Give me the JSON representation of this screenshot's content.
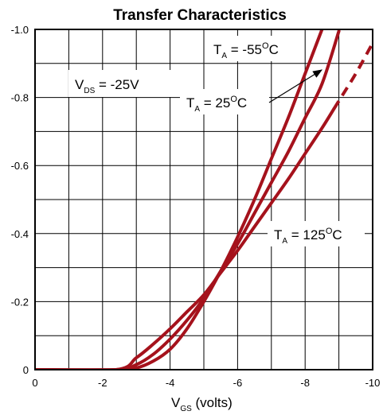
{
  "chart_data": {
    "type": "line",
    "title": "Transfer Characteristics",
    "xlabel": {
      "main": "V",
      "sub": "GS",
      "suffix": " (volts)"
    },
    "ylabel": "",
    "xlim": [
      0,
      -10
    ],
    "ylim": [
      0,
      -1.0
    ],
    "x_ticks": [
      0,
      -2,
      -4,
      -6,
      -8,
      -10
    ],
    "x_tick_labels": [
      "0",
      "-2",
      "-4",
      "-6",
      "-8",
      "-10"
    ],
    "y_ticks": [
      0,
      -0.2,
      -0.4,
      -0.6,
      -0.8,
      -1.0
    ],
    "y_tick_labels": [
      "0",
      "-0.2",
      "-0.4",
      "-0.6",
      "-0.8",
      "-1.0"
    ],
    "grid": true,
    "line_color": "#a5121c",
    "series": [
      {
        "name": "T_A = -55°C",
        "x": [
          0,
          -2.4,
          -3.0,
          -3.5,
          -4.0,
          -4.5,
          -5.0,
          -5.5,
          -6.0,
          -6.5,
          -7.0,
          -7.5,
          -8.0,
          -8.5
        ],
        "y": [
          0,
          0,
          -0.005,
          -0.025,
          -0.06,
          -0.12,
          -0.2,
          -0.29,
          -0.39,
          -0.5,
          -0.62,
          -0.74,
          -0.87,
          -1.0
        ],
        "dashed_from": null
      },
      {
        "name": "T_A = 25°C",
        "x": [
          0,
          -2.4,
          -3.0,
          -3.5,
          -4.0,
          -4.5,
          -5.0,
          -5.5,
          -6.0,
          -6.5,
          -7.0,
          -7.5,
          -8.0,
          -8.5,
          -9.0
        ],
        "y": [
          0,
          0,
          -0.015,
          -0.045,
          -0.09,
          -0.145,
          -0.21,
          -0.29,
          -0.37,
          -0.46,
          -0.55,
          -0.64,
          -0.74,
          -0.84,
          -0.995
        ],
        "dashed_from": null
      },
      {
        "name": "T_A = 125°C",
        "x": [
          0,
          -2.4,
          -3.0,
          -3.5,
          -4.0,
          -4.5,
          -5.0,
          -5.5,
          -6.0,
          -6.5,
          -7.0,
          -7.5,
          -8.0,
          -8.5,
          -9.0,
          -9.5,
          -10.0
        ],
        "y": [
          0,
          0,
          -0.035,
          -0.075,
          -0.12,
          -0.17,
          -0.22,
          -0.285,
          -0.35,
          -0.42,
          -0.49,
          -0.56,
          -0.635,
          -0.71,
          -0.79,
          -0.87,
          -0.96
        ],
        "dashed_from": -8.85
      }
    ],
    "annotations": {
      "vds": {
        "main": "V",
        "sub": "DS",
        "suffix": " = -25V"
      },
      "t55": {
        "main": "T",
        "sub": "A",
        "value": " = -55",
        "sup": "O",
        "unit": "C"
      },
      "t25": {
        "main": "T",
        "sub": "A",
        "value": " = 25",
        "sup": "O",
        "unit": "C"
      },
      "t125": {
        "main": "T",
        "sub": "A",
        "value": " = 125",
        "sup": "O",
        "unit": "C"
      }
    }
  }
}
